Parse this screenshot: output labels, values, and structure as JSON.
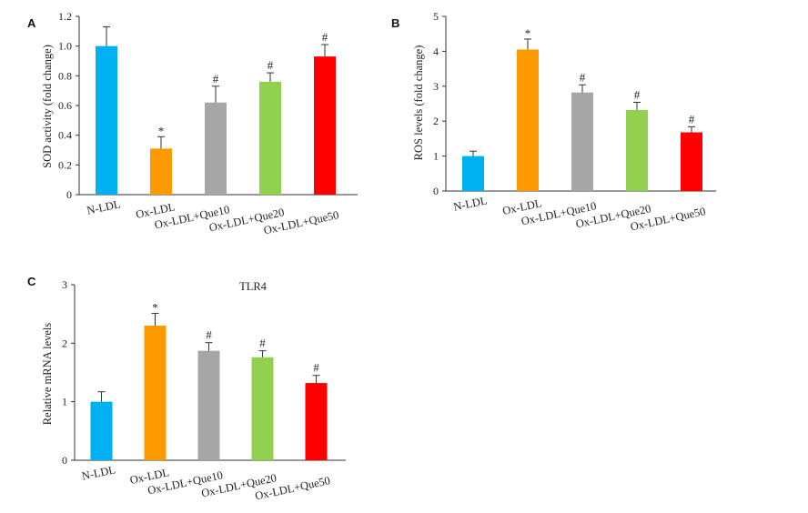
{
  "chart_data": [
    {
      "panel": "A",
      "type": "bar",
      "title": "",
      "ylabel": "SOD activity (fold change)",
      "xlabel": "",
      "ylim": [
        0,
        1.2
      ],
      "yticks": [
        0,
        0.2,
        0.4,
        0.6,
        0.8,
        1.0,
        1.2
      ],
      "ytick_labels": [
        "0",
        "0.2",
        "0.4",
        "0.6",
        "0.8",
        "1.0",
        "1.2"
      ],
      "categories": [
        "N-LDL",
        "Ox-LDL",
        "Ox-LDL+Que10",
        "Ox-LDL+Que20",
        "Ox-LDL+Que50"
      ],
      "values": [
        1.0,
        0.31,
        0.62,
        0.76,
        0.93
      ],
      "errors": [
        0.13,
        0.08,
        0.11,
        0.06,
        0.08
      ],
      "significance": [
        "",
        "*",
        "#",
        "#",
        "#"
      ],
      "colors": [
        "#00b0f0",
        "#ff9900",
        "#a6a6a6",
        "#92d050",
        "#ff0000"
      ],
      "grid": false
    },
    {
      "panel": "B",
      "type": "bar",
      "title": "",
      "ylabel": "ROS levels (fold change)",
      "xlabel": "",
      "ylim": [
        0,
        5
      ],
      "yticks": [
        0,
        1,
        2,
        3,
        4,
        5
      ],
      "ytick_labels": [
        "0",
        "1",
        "2",
        "3",
        "4",
        "5"
      ],
      "categories": [
        "N-LDL",
        "Ox-LDL",
        "Ox-LDL+Que10",
        "Ox-LDL+Que20",
        "Ox-LDL+Que50"
      ],
      "values": [
        1.0,
        4.05,
        2.82,
        2.32,
        1.68
      ],
      "errors": [
        0.14,
        0.3,
        0.22,
        0.22,
        0.16
      ],
      "significance": [
        "",
        "*",
        "#",
        "#",
        "#"
      ],
      "colors": [
        "#00b0f0",
        "#ff9900",
        "#a6a6a6",
        "#92d050",
        "#ff0000"
      ],
      "grid": false
    },
    {
      "panel": "C",
      "type": "bar",
      "title": "TLR4",
      "ylabel": "Relative mRNA levels",
      "xlabel": "",
      "ylim": [
        0,
        3
      ],
      "yticks": [
        0,
        1,
        2,
        3
      ],
      "ytick_labels": [
        "0",
        "1",
        "2",
        "3"
      ],
      "categories": [
        "N-LDL",
        "Ox-LDL",
        "Ox-LDL+Que10",
        "Ox-LDL+Que20",
        "Ox-LDL+Que50"
      ],
      "values": [
        1.0,
        2.3,
        1.87,
        1.76,
        1.32
      ],
      "errors": [
        0.17,
        0.21,
        0.14,
        0.11,
        0.13
      ],
      "significance": [
        "",
        "*",
        "#",
        "#",
        "#"
      ],
      "colors": [
        "#00b0f0",
        "#ff9900",
        "#a6a6a6",
        "#92d050",
        "#ff0000"
      ],
      "grid": false
    }
  ]
}
